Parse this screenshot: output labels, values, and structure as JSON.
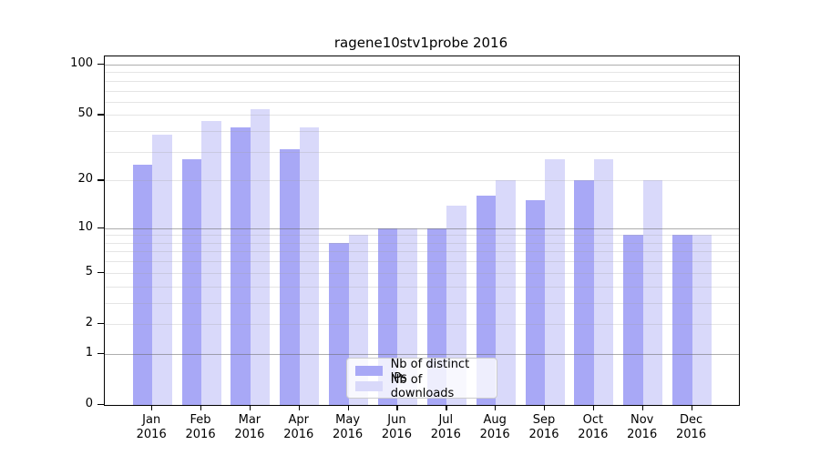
{
  "chart_data": {
    "type": "bar",
    "title": "ragene10stv1probe 2016",
    "categories": [
      "Jan",
      "Feb",
      "Mar",
      "Apr",
      "May",
      "Jun",
      "Jul",
      "Aug",
      "Sep",
      "Oct",
      "Nov",
      "Dec"
    ],
    "category_year": "2016",
    "series": [
      {
        "name": "Nb of distinct IPs",
        "color": "#a8a8f6",
        "values": [
          25,
          27,
          42,
          31,
          8,
          10,
          10,
          16,
          15,
          20,
          9,
          9
        ]
      },
      {
        "name": "Nb of downloads",
        "color": "#d9d9fa",
        "values": [
          38,
          46,
          54,
          42,
          9,
          10,
          14,
          20,
          27,
          27,
          20,
          9
        ]
      }
    ],
    "xlabel": "",
    "ylabel": "",
    "yscale": "log1p",
    "ylim": [
      0,
      112
    ],
    "ytick_values": [
      100,
      50,
      20,
      10,
      5,
      2,
      1,
      0
    ],
    "ytick_labels": [
      "100",
      "50",
      "20",
      "10",
      "5",
      "2",
      "1",
      "0"
    ],
    "major_grid_values": [
      1,
      10,
      100
    ],
    "minor_grid_values": [
      2,
      3,
      4,
      5,
      6,
      7,
      8,
      9,
      20,
      30,
      40,
      50,
      60,
      70,
      80,
      90
    ],
    "grid": "on",
    "legend_position": "lower center",
    "colors": {
      "axis": "#000000",
      "major_grid": "#acacac",
      "minor_grid": "#e4e4e4",
      "background": "#ffffff"
    }
  }
}
